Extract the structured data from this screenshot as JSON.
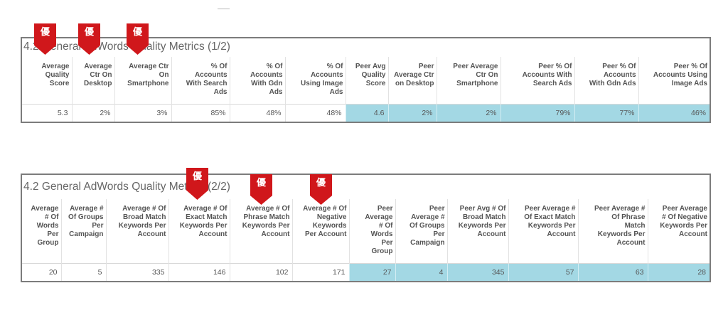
{
  "badge_label": "優",
  "colors": {
    "peer_highlight": "#a3d8e4",
    "badge": "#d0171b"
  },
  "tables": [
    {
      "title": "4.2 General AdWords Quality Metrics (1/2)",
      "columns": [
        {
          "header": "Average\nQuality\nScore",
          "value": "5.3"
        },
        {
          "header": "Average\nCtr On\nDesktop",
          "value": "2%"
        },
        {
          "header": "Average Ctr\nOn\nSmartphone",
          "value": "3%"
        },
        {
          "header": "% Of\nAccounts\nWith Search\nAds",
          "value": "85%"
        },
        {
          "header": "% Of\nAccounts\nWith Gdn\nAds",
          "value": "48%"
        },
        {
          "header": "% Of\nAccounts\nUsing Image\nAds",
          "value": "48%"
        },
        {
          "header": "Peer Avg\nQuality\nScore",
          "value": "4.6"
        },
        {
          "header": "Peer\nAverage Ctr\non Desktop",
          "value": "2%"
        },
        {
          "header": "Peer Average\nCtr On\nSmartphone",
          "value": "2%"
        },
        {
          "header": "Peer % Of\nAccounts With\nSearch Ads",
          "value": "79%"
        },
        {
          "header": "Peer % Of\nAccounts\nWith Gdn Ads",
          "value": "77%"
        },
        {
          "header": "Peer % Of\nAccounts Using\nImage Ads",
          "value": "46%"
        }
      ]
    },
    {
      "title": "4.2 General AdWords Quality Metrics (2/2)",
      "columns": [
        {
          "header": "Average\n# Of\nWords\nPer\nGroup",
          "value": "20"
        },
        {
          "header": "Average #\nOf Groups\nPer\nCampaign",
          "value": "5"
        },
        {
          "header": "Average # Of\nBroad Match\nKeywords Per\nAccount",
          "value": "335"
        },
        {
          "header": "Average # Of\nExact Match\nKeywords Per\nAccount",
          "value": "146"
        },
        {
          "header": "Average # Of\nPhrase Match\nKeywords Per\nAccount",
          "value": "102"
        },
        {
          "header": "Average # Of\nNegative\nKeywords\nPer Account",
          "value": "171"
        },
        {
          "header": "Peer\nAverage\n# Of\nWords\nPer\nGroup",
          "value": "27"
        },
        {
          "header": "Peer\nAverage #\nOf Groups\nPer\nCampaign",
          "value": "4"
        },
        {
          "header": "Peer Avg # Of\nBroad Match\nKeywords Per\nAccount",
          "value": "345"
        },
        {
          "header": "Peer Average #\nOf Exact Match\nKeywords Per\nAccount",
          "value": "57"
        },
        {
          "header": "Peer Average #\nOf Phrase\nMatch\nKeywords Per\nAccount",
          "value": "63"
        },
        {
          "header": "Peer Average\n# Of Negative\nKeywords Per\nAccount",
          "value": "28"
        }
      ]
    }
  ]
}
